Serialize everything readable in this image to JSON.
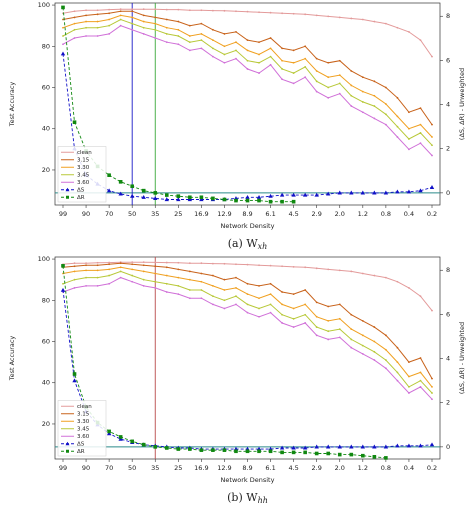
{
  "chart_data": [
    {
      "type": "line",
      "caption": "(a) W",
      "caption_subscript": "xh",
      "xlabel": "Network Density",
      "ylabel": "Test Accuracy",
      "y2label": "(ΔS, ΔR) - Unweighted",
      "categories": [
        "99",
        null,
        "90",
        null,
        "70",
        null,
        "50",
        null,
        "35",
        null,
        "25",
        null,
        "16.9",
        null,
        "12.9",
        null,
        "8.9",
        null,
        "6.1",
        null,
        "4.5",
        null,
        "2.9",
        null,
        "2.0",
        null,
        "1.2",
        null,
        "0.8",
        null,
        "0.4",
        null,
        "0.2"
      ],
      "ylim": [
        3,
        101
      ],
      "yticks": [
        20,
        40,
        60,
        80,
        100
      ],
      "y2lim": [
        -0.55,
        8.6
      ],
      "y2ticks": [
        0,
        2,
        4,
        6,
        8
      ],
      "legend": "lower left",
      "vlines": [
        {
          "x": "50",
          "color": "#1a1ac8"
        },
        {
          "x": "35",
          "color": "#3aa83a"
        }
      ],
      "hline_y2": 0,
      "hline_color": "#2a8a8a",
      "series": [
        {
          "name": "clean",
          "color": "#e39a9a",
          "values": [
            96,
            97,
            97.5,
            97.5,
            97.8,
            98,
            98,
            98,
            98,
            97.8,
            97.8,
            97.5,
            97.5,
            97.3,
            97.2,
            97,
            96.8,
            96.5,
            96.3,
            96,
            95.8,
            95.5,
            95,
            94.5,
            94,
            93.5,
            93,
            92,
            91,
            89,
            87,
            83,
            75
          ]
        },
        {
          "name": "3.15",
          "color": "#c8621a",
          "values": [
            93,
            94,
            95,
            95.5,
            96,
            97,
            97,
            95,
            94,
            93,
            92,
            90,
            91,
            88,
            86,
            87,
            83,
            82,
            84,
            79,
            78,
            80,
            74,
            72,
            73,
            68,
            65,
            63,
            60,
            55,
            48,
            50,
            42
          ]
        },
        {
          "name": "3.30",
          "color": "#f0a020",
          "values": [
            89,
            91,
            92,
            92,
            93,
            95,
            94,
            92,
            91,
            89,
            88,
            85,
            86,
            83,
            80,
            82,
            78,
            76,
            79,
            73,
            72,
            74,
            68,
            65,
            66,
            61,
            58,
            56,
            52,
            46,
            40,
            42,
            36
          ]
        },
        {
          "name": "3.45",
          "color": "#b8c838",
          "values": [
            85,
            88,
            89,
            89,
            90,
            93,
            91,
            89,
            88,
            86,
            85,
            82,
            83,
            79,
            76,
            78,
            73,
            72,
            75,
            69,
            67,
            70,
            63,
            60,
            62,
            56,
            53,
            51,
            47,
            41,
            35,
            38,
            32
          ]
        },
        {
          "name": "3.60",
          "color": "#d070d8",
          "values": [
            81,
            84,
            85,
            85,
            86,
            90,
            88,
            86,
            84,
            82,
            81,
            78,
            79,
            75,
            72,
            74,
            69,
            67,
            71,
            64,
            62,
            65,
            58,
            55,
            57,
            51,
            48,
            45,
            42,
            36,
            30,
            33,
            27
          ]
        },
        {
          "name": "ΔS",
          "color": "#1010c8",
          "axis": "y2",
          "marker": "triangle",
          "values": [
            6.3,
            2.0,
            0.8,
            0.4,
            0.1,
            -0.05,
            -0.15,
            -0.2,
            -0.25,
            -0.3,
            -0.3,
            -0.3,
            -0.3,
            -0.3,
            -0.3,
            -0.25,
            -0.2,
            -0.2,
            -0.15,
            -0.1,
            -0.1,
            -0.1,
            -0.1,
            -0.05,
            0,
            0,
            0,
            0,
            0,
            0.05,
            0.05,
            0.1,
            0.25
          ]
        },
        {
          "name": "ΔR",
          "color": "#108810",
          "axis": "y2",
          "marker": "square",
          "values": [
            8.4,
            3.2,
            1.9,
            1.2,
            0.8,
            0.5,
            0.3,
            0.1,
            0,
            -0.1,
            -0.15,
            -0.2,
            -0.2,
            -0.25,
            -0.3,
            -0.35,
            -0.35,
            -0.35,
            -0.4,
            -0.4,
            -0.4,
            null,
            null,
            null,
            null,
            null,
            null,
            null,
            null,
            null,
            null,
            null,
            null
          ]
        }
      ]
    },
    {
      "type": "line",
      "caption": "(b) W",
      "caption_subscript": "hh",
      "xlabel": "Network Density",
      "ylabel": "Test Accuracy",
      "y2label": "(ΔS, ΔR) - Unweighted",
      "categories": [
        "99",
        null,
        "90",
        null,
        "70",
        null,
        "50",
        null,
        "35",
        null,
        "25",
        null,
        "16.9",
        null,
        "12.9",
        null,
        "8.9",
        null,
        "6.1",
        null,
        "4.5",
        null,
        "2.9",
        null,
        "2.0",
        null,
        "1.2",
        null,
        "0.8",
        null,
        "0.4",
        null,
        "0.2"
      ],
      "ylim": [
        3,
        101
      ],
      "yticks": [
        20,
        40,
        60,
        80,
        100
      ],
      "y2lim": [
        -0.55,
        8.6
      ],
      "y2ticks": [
        0,
        2,
        4,
        6,
        8
      ],
      "legend": "lower left",
      "vlines": [
        {
          "x": "35",
          "color": "#b84a4a"
        }
      ],
      "hline_y2": 0,
      "hline_color": "#2a8a8a",
      "series": [
        {
          "name": "clean",
          "color": "#e39a9a",
          "values": [
            97.5,
            98,
            98,
            98.2,
            98.3,
            98.5,
            98.5,
            98.5,
            98.4,
            98.3,
            98.2,
            98,
            98,
            97.8,
            97.7,
            97.5,
            97.3,
            97,
            96.8,
            96.5,
            96.2,
            96,
            95.5,
            95,
            94.5,
            94,
            93,
            92,
            91,
            89,
            86,
            82,
            75
          ]
        },
        {
          "name": "3.15",
          "color": "#c8621a",
          "values": [
            96,
            96.5,
            97,
            97,
            97.5,
            98,
            97.5,
            97,
            96.5,
            96,
            95,
            94,
            93,
            92,
            90,
            91,
            88,
            87,
            88,
            84,
            83,
            85,
            79,
            77,
            78,
            73,
            70,
            67,
            63,
            57,
            50,
            52,
            42
          ]
        },
        {
          "name": "3.30",
          "color": "#f0a020",
          "values": [
            93,
            94,
            94.5,
            94.5,
            95,
            96,
            95,
            94,
            93,
            92,
            91,
            90,
            89,
            87,
            85,
            86,
            83,
            81,
            83,
            78,
            76,
            78,
            72,
            70,
            71,
            66,
            63,
            60,
            56,
            50,
            43,
            45,
            38
          ]
        },
        {
          "name": "3.45",
          "color": "#b8c838",
          "values": [
            88,
            90,
            91,
            91,
            92,
            94,
            92,
            90,
            89,
            88,
            87,
            85,
            85,
            82,
            80,
            82,
            78,
            76,
            78,
            73,
            71,
            73,
            67,
            65,
            66,
            61,
            58,
            55,
            51,
            45,
            38,
            41,
            35
          ]
        },
        {
          "name": "3.60",
          "color": "#d070d8",
          "values": [
            84,
            86,
            87,
            87,
            88,
            91,
            89,
            87,
            86,
            84,
            83,
            81,
            81,
            78,
            76,
            78,
            74,
            72,
            74,
            69,
            67,
            69,
            63,
            61,
            62,
            57,
            54,
            51,
            47,
            41,
            35,
            38,
            32
          ]
        },
        {
          "name": "ΔS",
          "color": "#1010c8",
          "axis": "y2",
          "marker": "triangle",
          "values": [
            7.1,
            3.0,
            1.6,
            1.0,
            0.6,
            0.35,
            0.2,
            0.1,
            0.05,
            0,
            -0.05,
            -0.05,
            -0.1,
            -0.1,
            -0.1,
            -0.1,
            -0.1,
            -0.1,
            -0.1,
            -0.05,
            -0.05,
            -0.05,
            0,
            0,
            0,
            0,
            0,
            0,
            0,
            0.05,
            0.05,
            0.05,
            0.1
          ]
        },
        {
          "name": "ΔR",
          "color": "#108810",
          "axis": "y2",
          "marker": "square",
          "values": [
            8.2,
            3.3,
            1.8,
            1.1,
            0.7,
            0.45,
            0.25,
            0.1,
            0,
            -0.05,
            -0.1,
            -0.1,
            -0.15,
            -0.15,
            -0.15,
            -0.2,
            -0.2,
            -0.2,
            -0.2,
            -0.25,
            -0.25,
            -0.25,
            -0.3,
            -0.3,
            -0.35,
            -0.35,
            -0.4,
            -0.45,
            -0.5,
            null,
            null,
            null,
            null
          ]
        }
      ]
    }
  ]
}
